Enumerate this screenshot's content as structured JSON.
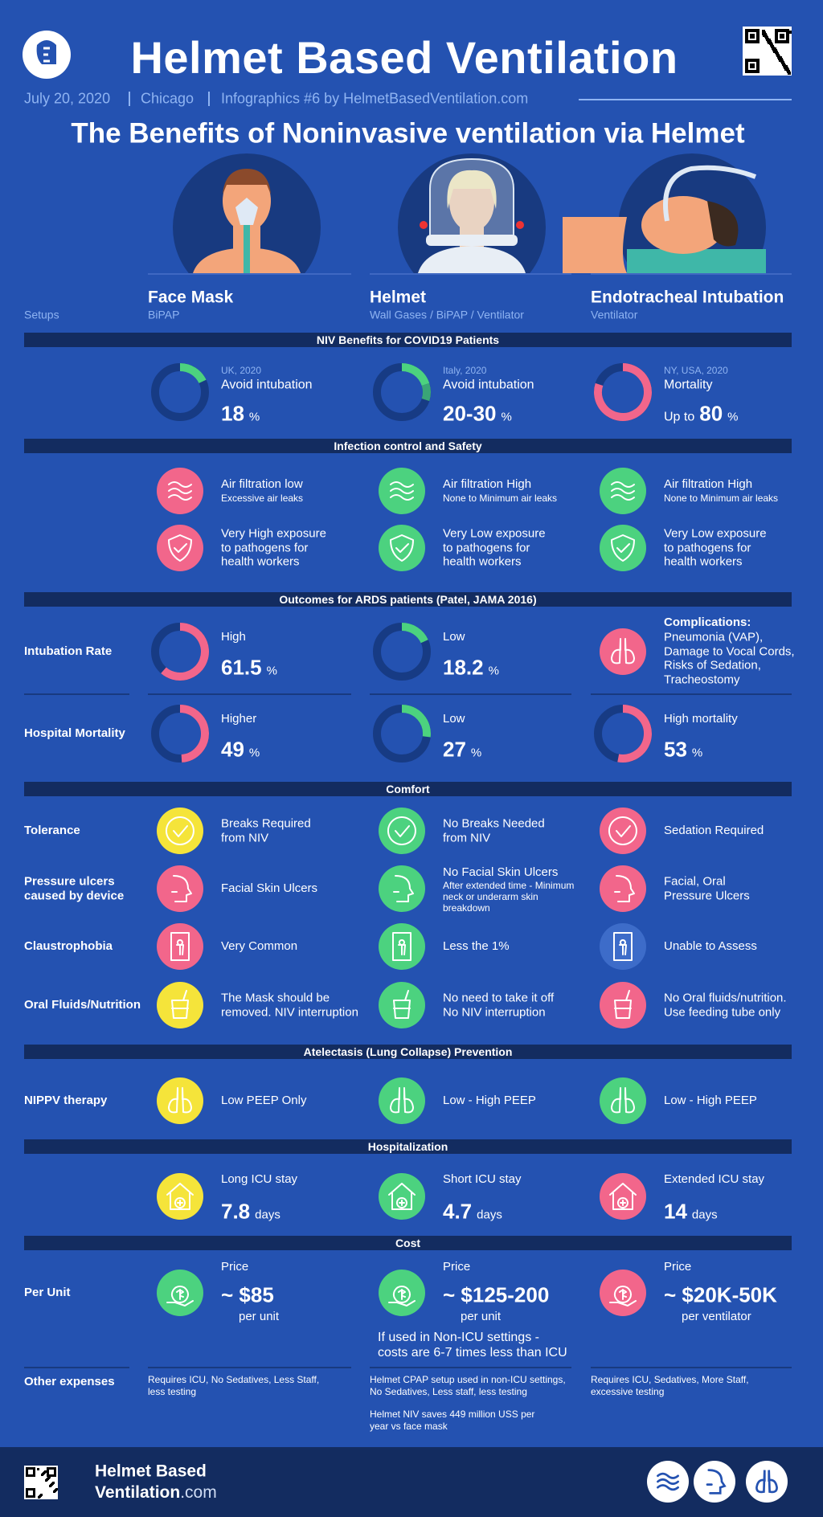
{
  "header": {
    "title": "Helmet Based Ventilation",
    "date": "July 20, 2020",
    "location": "Chicago",
    "credit": "Infographics #6 by HelmetBasedVentilation.com",
    "subtitle": "The Benefits of Noninvasive ventilation via Helmet"
  },
  "setups": {
    "label": "Setups",
    "columns": [
      {
        "name": "Face Mask",
        "detail": "BiPAP"
      },
      {
        "name": "Helmet",
        "detail": "Wall Gases / BiPAP / Ventilator"
      },
      {
        "name": "Endotracheal Intubation",
        "detail": "Ventilator"
      }
    ]
  },
  "niv_benefits": {
    "title": "NIV Benefits for COVID19 Patients",
    "cells": [
      {
        "source": "UK, 2020",
        "label": "Avoid intubation",
        "value": 18,
        "unit": "%",
        "color": "#4cd27f"
      },
      {
        "source": "Italy, 2020",
        "label": "Avoid intubation",
        "value_label": "20-30",
        "range": [
          20,
          30
        ],
        "unit": "%",
        "color": "#4cd27f",
        "range_color": "#3aa577"
      },
      {
        "source": "NY, USA, 2020",
        "label": "Mortality",
        "prefix": "Up to",
        "value": 80,
        "unit": "%",
        "color": "#f2668b"
      }
    ]
  },
  "infection_control": {
    "title": "Infection control and Safety",
    "rows": [
      [
        {
          "text": "Air filtration low",
          "note": "Excessive air leaks",
          "color": "#f2668b"
        },
        {
          "text": "Air filtration High",
          "note": "None to Minimum air leaks",
          "color": "#4cd27f"
        },
        {
          "text": "Air filtration High",
          "note": "None to Minimum air leaks",
          "color": "#4cd27f"
        }
      ],
      [
        {
          "text": "Very High exposure\nto pathogens for\nhealth workers",
          "color": "#f2668b"
        },
        {
          "text": "Very Low exposure\nto pathogens for\nhealth workers",
          "color": "#4cd27f"
        },
        {
          "text": "Very Low exposure\nto pathogens for\nhealth workers",
          "color": "#4cd27f"
        }
      ]
    ]
  },
  "outcomes": {
    "title": "Outcomes for ARDS patients (Patel, JAMA 2016)",
    "rows": [
      {
        "label": "Intubation Rate",
        "cells": [
          {
            "label": "High",
            "value": 61.5,
            "unit": "%",
            "color": "#f2668b"
          },
          {
            "label": "Low",
            "value": 18.2,
            "unit": "%",
            "color": "#4cd27f"
          },
          {
            "heading": "Complications:",
            "text": "Pneumonia (VAP),\nDamage to Vocal Cords,\nRisks of Sedation,\nTracheostomy",
            "color": "#f2668b"
          }
        ]
      },
      {
        "label": "Hospital Mortality",
        "cells": [
          {
            "label": "Higher",
            "value": 49,
            "unit": "%",
            "color": "#f2668b"
          },
          {
            "label": "Low",
            "value": 27,
            "unit": "%",
            "color": "#4cd27f"
          },
          {
            "label": "High mortality",
            "value": 53,
            "unit": "%",
            "color": "#f2668b"
          }
        ]
      }
    ]
  },
  "comfort": {
    "title": "Comfort",
    "rows": [
      {
        "label": "Tolerance",
        "cells": [
          {
            "text": "Breaks Required\nfrom NIV",
            "color": "#f5e43a"
          },
          {
            "text": "No Breaks Needed\nfrom NIV",
            "color": "#4cd27f"
          },
          {
            "text": "Sedation Required",
            "color": "#f2668b"
          }
        ]
      },
      {
        "label": "Pressure ulcers\ncaused by device",
        "cells": [
          {
            "text": "Facial Skin Ulcers",
            "color": "#f2668b"
          },
          {
            "text": "No Facial Skin Ulcers",
            "note": "After extended time - Minimum\nneck or underarm skin\nbreakdown",
            "color": "#4cd27f"
          },
          {
            "text": "Facial, Oral\nPressure Ulcers",
            "color": "#f2668b"
          }
        ]
      },
      {
        "label": "Claustrophobia",
        "cells": [
          {
            "text": "Very Common",
            "color": "#f2668b"
          },
          {
            "text": "Less the 1%",
            "color": "#4cd27f"
          },
          {
            "text": "Unable to Assess",
            "color": "#3d6cc9"
          }
        ]
      },
      {
        "label": "Oral Fluids/Nutrition",
        "cells": [
          {
            "text": "The Mask should be\nremoved. NIV interruption",
            "color": "#f5e43a"
          },
          {
            "text": "No need to take it off\nNo NIV interruption",
            "color": "#4cd27f"
          },
          {
            "text": "No Oral fluids/nutrition.\nUse feeding tube only",
            "color": "#f2668b"
          }
        ]
      }
    ]
  },
  "atelectasis": {
    "title": "Atelectasis (Lung Collapse) Prevention",
    "rows": [
      {
        "label": "NIPPV therapy",
        "cells": [
          {
            "text": "Low PEEP Only",
            "color": "#f5e43a"
          },
          {
            "text": "Low - High PEEP",
            "color": "#4cd27f"
          },
          {
            "text": "Low - High PEEP",
            "color": "#4cd27f"
          }
        ]
      }
    ]
  },
  "hospitalization": {
    "title": "Hospitalization",
    "cells": [
      {
        "label": "Long ICU stay",
        "value": 7.8,
        "unit": "days",
        "color": "#f5e43a"
      },
      {
        "label": "Short ICU stay",
        "value": 4.7,
        "unit": "days",
        "color": "#4cd27f"
      },
      {
        "label": "Extended ICU stay",
        "value": 14,
        "unit": "days",
        "color": "#f2668b"
      }
    ]
  },
  "cost": {
    "title": "Cost",
    "label": "Per Unit",
    "cells": [
      {
        "label": "Price",
        "price": "~ $85",
        "unit": "per unit",
        "color": "#4cd27f"
      },
      {
        "label": "Price",
        "price": "~ $125-200",
        "unit": "per unit",
        "color": "#4cd27f"
      },
      {
        "label": "Price",
        "price": "~ $20K-50K",
        "unit": "per ventilator",
        "color": "#f2668b"
      }
    ],
    "note": "If used in Non-ICU settings -\ncosts are 6-7 times less than ICU",
    "other_label": "Other expenses",
    "other": [
      [
        "Requires ICU, No Sedatives, Less Staff,\nless testing"
      ],
      [
        "Helmet CPAP setup used in non-ICU settings,\nNo Sedatives, Less staff, less testing",
        "Helmet NIV saves 449 million USS per\nyear vs face mask"
      ],
      [
        "Requires ICU, Sedatives, More Staff,\nexcessive testing"
      ]
    ]
  },
  "footer": {
    "line1": "Helmet Based",
    "line2": "Ventilation",
    "suffix": ".com"
  }
}
